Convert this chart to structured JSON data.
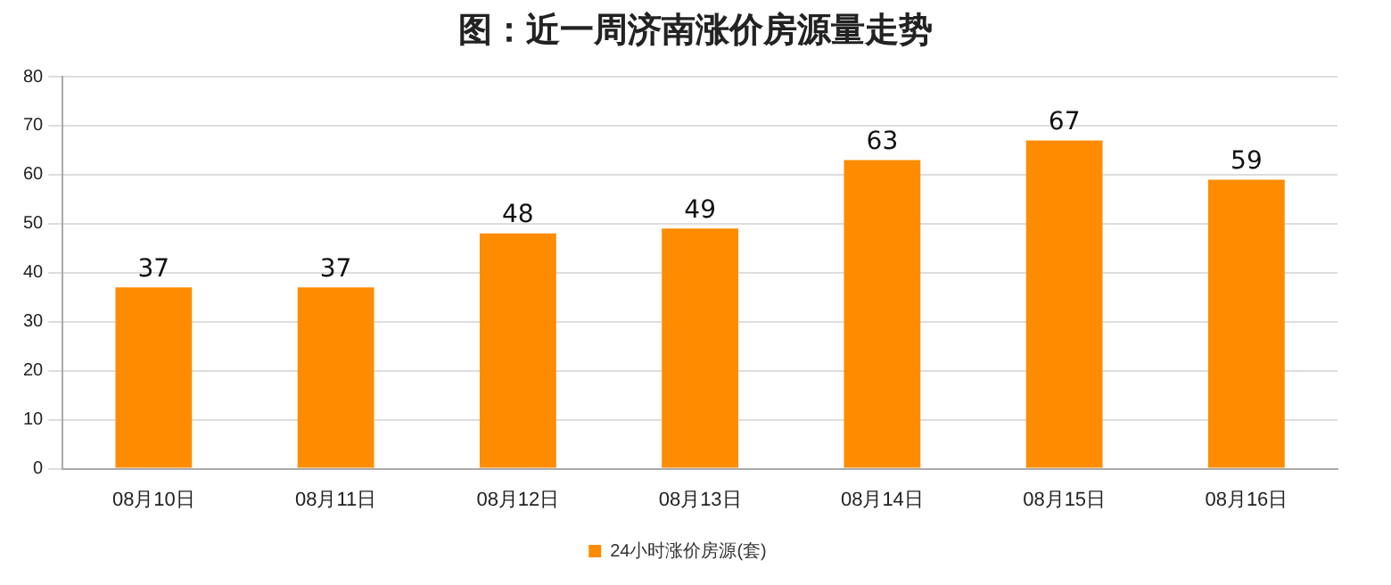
{
  "chart_data": {
    "type": "bar",
    "title": "图：近一周济南涨价房源量走势",
    "categories": [
      "08月10日",
      "08月11日",
      "08月12日",
      "08月13日",
      "08月14日",
      "08月15日",
      "08月16日"
    ],
    "series": [
      {
        "name": "24小时涨价房源(套)",
        "color": "#ff8c00",
        "values": [
          37,
          37,
          48,
          49,
          63,
          67,
          59
        ]
      }
    ],
    "ylim": [
      0,
      80
    ],
    "yticks": [
      0,
      10,
      20,
      30,
      40,
      50,
      60,
      70,
      80
    ],
    "grid": "y",
    "legend": "bottom",
    "data_labels": true
  }
}
